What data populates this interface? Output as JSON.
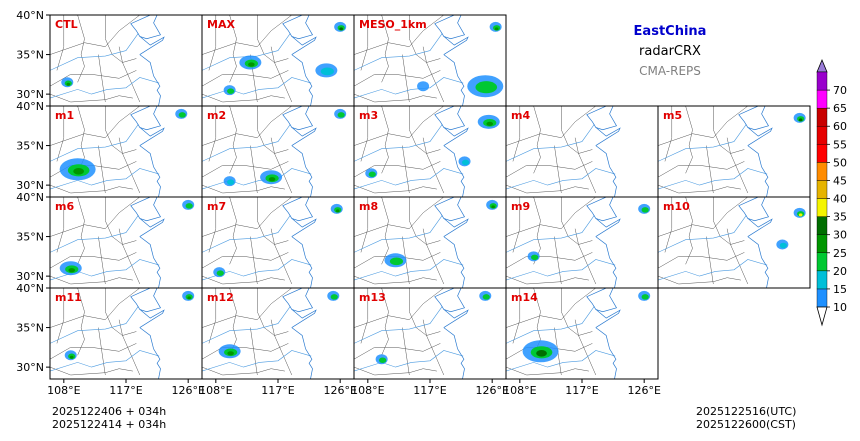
{
  "header": {
    "region": "EastChina",
    "variable": "radarCRX",
    "system": "CMA-REPS"
  },
  "chart_data": {
    "type": "heatmap",
    "title": "radarCRX",
    "panel_grid": {
      "rows": 4,
      "cols": 5
    },
    "panels": [
      {
        "label": "CTL",
        "row": 0,
        "col": 0,
        "label_color": "#e00000",
        "echoes": [
          {
            "lon": 108.5,
            "lat": 31.5,
            "dbz": 25,
            "size": "small"
          }
        ]
      },
      {
        "label": "MAX",
        "row": 0,
        "col": 1,
        "label_color": "#e00000",
        "echoes": [
          {
            "lon": 113,
            "lat": 34,
            "dbz": 25,
            "size": "medium"
          },
          {
            "lon": 126,
            "lat": 38.5,
            "dbz": 30,
            "size": "small"
          },
          {
            "lon": 124,
            "lat": 33,
            "dbz": 15,
            "size": "medium"
          },
          {
            "lon": 110,
            "lat": 30.5,
            "dbz": 20,
            "size": "small"
          }
        ]
      },
      {
        "label": "MESO_1km",
        "row": 0,
        "col": 2,
        "label_color": "#e00000",
        "echoes": [
          {
            "lon": 125,
            "lat": 31,
            "dbz": 20,
            "size": "large"
          },
          {
            "lon": 126.5,
            "lat": 38.5,
            "dbz": 25,
            "size": "small"
          },
          {
            "lon": 116,
            "lat": 31,
            "dbz": 10,
            "size": "small"
          }
        ]
      },
      {
        "label": "m1",
        "row": 1,
        "col": 0,
        "label_color": "#e00000",
        "echoes": [
          {
            "lon": 110,
            "lat": 32,
            "dbz": 25,
            "size": "large"
          },
          {
            "lon": 125,
            "lat": 39,
            "dbz": 20,
            "size": "small"
          }
        ]
      },
      {
        "label": "m2",
        "row": 1,
        "col": 1,
        "label_color": "#e00000",
        "echoes": [
          {
            "lon": 116,
            "lat": 31,
            "dbz": 25,
            "size": "medium"
          },
          {
            "lon": 110,
            "lat": 30.5,
            "dbz": 15,
            "size": "small"
          },
          {
            "lon": 126,
            "lat": 39,
            "dbz": 20,
            "size": "small"
          }
        ]
      },
      {
        "label": "m3",
        "row": 1,
        "col": 2,
        "label_color": "#e00000",
        "echoes": [
          {
            "lon": 108.5,
            "lat": 31.5,
            "dbz": 20,
            "size": "small"
          },
          {
            "lon": 125.5,
            "lat": 38,
            "dbz": 25,
            "size": "medium"
          },
          {
            "lon": 122,
            "lat": 33,
            "dbz": 15,
            "size": "small"
          }
        ]
      },
      {
        "label": "m4",
        "row": 1,
        "col": 3,
        "label_color": "#e00000",
        "echoes": []
      },
      {
        "label": "m5",
        "row": 1,
        "col": 4,
        "label_color": "#e00000",
        "echoes": [
          {
            "lon": 126.5,
            "lat": 38.5,
            "dbz": 30,
            "size": "small"
          }
        ]
      },
      {
        "label": "m6",
        "row": 2,
        "col": 0,
        "label_color": "#e00000",
        "echoes": [
          {
            "lon": 109,
            "lat": 31,
            "dbz": 25,
            "size": "medium"
          },
          {
            "lon": 126,
            "lat": 39,
            "dbz": 20,
            "size": "small"
          }
        ]
      },
      {
        "label": "m7",
        "row": 2,
        "col": 1,
        "label_color": "#e00000",
        "echoes": [
          {
            "lon": 108.5,
            "lat": 30.5,
            "dbz": 20,
            "size": "small"
          },
          {
            "lon": 125.5,
            "lat": 38.5,
            "dbz": 25,
            "size": "small"
          }
        ]
      },
      {
        "label": "m8",
        "row": 2,
        "col": 2,
        "label_color": "#e00000",
        "echoes": [
          {
            "lon": 112,
            "lat": 32,
            "dbz": 20,
            "size": "medium"
          },
          {
            "lon": 126,
            "lat": 39,
            "dbz": 25,
            "size": "small"
          }
        ]
      },
      {
        "label": "m9",
        "row": 2,
        "col": 3,
        "label_color": "#e00000",
        "echoes": [
          {
            "lon": 110,
            "lat": 32.5,
            "dbz": 20,
            "size": "small"
          },
          {
            "lon": 126,
            "lat": 38.5,
            "dbz": 20,
            "size": "small"
          }
        ]
      },
      {
        "label": "m10",
        "row": 2,
        "col": 4,
        "label_color": "#e00000",
        "echoes": [
          {
            "lon": 126.5,
            "lat": 38,
            "dbz": 35,
            "size": "small"
          },
          {
            "lon": 124,
            "lat": 34,
            "dbz": 15,
            "size": "small"
          }
        ]
      },
      {
        "label": "m11",
        "row": 3,
        "col": 0,
        "label_color": "#e00000",
        "echoes": [
          {
            "lon": 109,
            "lat": 31.5,
            "dbz": 25,
            "size": "small"
          },
          {
            "lon": 126,
            "lat": 39,
            "dbz": 25,
            "size": "small"
          }
        ]
      },
      {
        "label": "m12",
        "row": 3,
        "col": 1,
        "label_color": "#e00000",
        "echoes": [
          {
            "lon": 110,
            "lat": 32,
            "dbz": 25,
            "size": "medium"
          },
          {
            "lon": 125,
            "lat": 39,
            "dbz": 20,
            "size": "small"
          }
        ]
      },
      {
        "label": "m13",
        "row": 3,
        "col": 2,
        "label_color": "#e00000",
        "echoes": [
          {
            "lon": 110,
            "lat": 31,
            "dbz": 20,
            "size": "small"
          },
          {
            "lon": 125,
            "lat": 39,
            "dbz": 20,
            "size": "small"
          }
        ]
      },
      {
        "label": "m14",
        "row": 3,
        "col": 3,
        "label_color": "#e00000",
        "echoes": [
          {
            "lon": 111,
            "lat": 32,
            "dbz": 30,
            "size": "large"
          },
          {
            "lon": 126,
            "lat": 39,
            "dbz": 20,
            "size": "small"
          }
        ]
      }
    ],
    "lon_range": [
      106,
      128
    ],
    "lat_range": [
      28.5,
      40
    ],
    "xticks": [
      108,
      117,
      126
    ],
    "xtick_labels": [
      "108°E",
      "117°E",
      "126°E"
    ],
    "yticks": [
      30,
      35,
      40
    ],
    "ytick_labels": [
      "30°N",
      "35°N",
      "40°N"
    ],
    "colorbar": {
      "levels": [
        10,
        15,
        20,
        25,
        30,
        35,
        40,
        45,
        50,
        55,
        60,
        65,
        70
      ],
      "labels": [
        "10",
        "15",
        "20",
        "25",
        "30",
        "35",
        "40",
        "45",
        "50",
        "55",
        "60",
        "65",
        "70"
      ],
      "colors": [
        "#1e90ff",
        "#00bfd8",
        "#00c832",
        "#009600",
        "#006e00",
        "#f5f500",
        "#e6b400",
        "#ff8c00",
        "#ff0000",
        "#e60000",
        "#c80000",
        "#ff00ff",
        "#9900cc",
        "#9a7cd8"
      ],
      "under_color": "#ffffff",
      "over_color": "#9a7cd8",
      "extend": "both"
    },
    "legend_position": "right"
  },
  "footer": {
    "init_line1": "2025122406  +  034h",
    "init_line2": "2025122414  +  034h",
    "valid_utc": "2025122516(UTC)",
    "valid_cst": "2025122600(CST)"
  }
}
